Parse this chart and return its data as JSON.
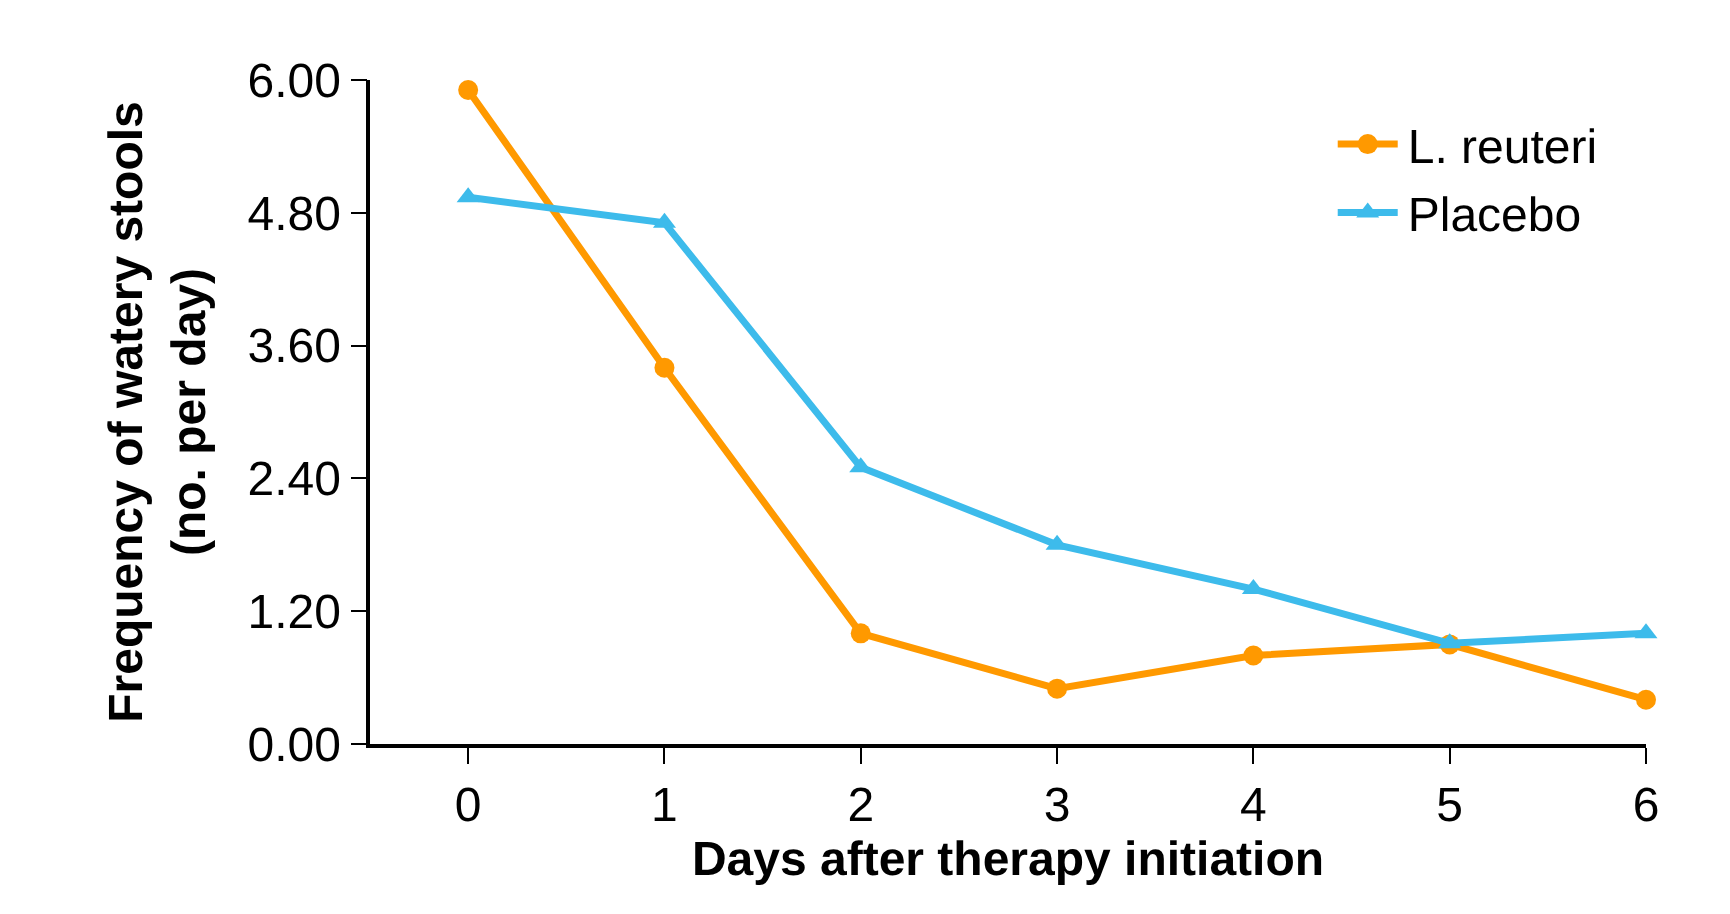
{
  "chart_data": {
    "type": "line",
    "xlabel": "Days after therapy initiation",
    "ylabel": "Frequency of watery stools\n(no. per day)",
    "x": [
      0,
      1,
      2,
      3,
      4,
      5,
      6
    ],
    "series": [
      {
        "name": "L. reuteri",
        "color": "#ff9900",
        "marker": "circle",
        "values": [
          5.91,
          3.4,
          1.0,
          0.5,
          0.8,
          0.9,
          0.4
        ]
      },
      {
        "name": "Placebo",
        "color": "#3dbbeb",
        "marker": "triangle",
        "values": [
          4.94,
          4.71,
          2.5,
          1.8,
          1.4,
          0.91,
          1.0
        ]
      }
    ],
    "xlim": [
      -0.5,
      6
    ],
    "xticks": [
      0,
      1,
      2,
      3,
      4,
      5,
      6
    ],
    "ylim": [
      0,
      6
    ],
    "yticks": [
      {
        "value": 0,
        "label": "0.00"
      },
      {
        "value": 1.2,
        "label": "1.20"
      },
      {
        "value": 2.4,
        "label": "2.40"
      },
      {
        "value": 3.6,
        "label": "3.60"
      },
      {
        "value": 4.8,
        "label": "4.80"
      },
      {
        "value": 6,
        "label": "6.00"
      }
    ],
    "legend": "top right",
    "line_style": "solid"
  }
}
